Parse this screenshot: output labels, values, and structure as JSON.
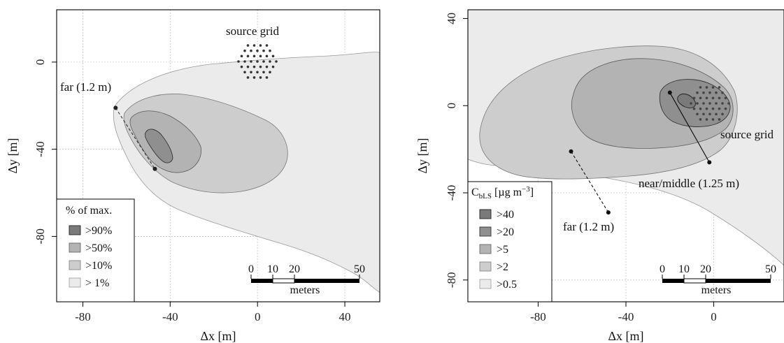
{
  "chart_data": [
    {
      "type": "contour",
      "xlabel": "Δx [m]",
      "ylabel": "Δy [m]",
      "xlim": [
        -92,
        56
      ],
      "ylim": [
        -110,
        24
      ],
      "xticks": [
        -80,
        -40,
        0,
        40
      ],
      "yticks": [
        0,
        -40,
        -80
      ],
      "xtick_labels": [
        "-80",
        "-40",
        "0",
        "40"
      ],
      "ytick_labels": [
        "0",
        "-40",
        "-80"
      ],
      "grid": true,
      "legend_title": "% of max.",
      "legend_position": "bottom-left",
      "legend": [
        ">90%",
        ">50%",
        ">10%",
        "> 1%"
      ],
      "levels_pct": [
        90,
        50,
        10,
        1
      ],
      "annotations": [
        {
          "text": "source grid"
        },
        {
          "text": "far (1.2 m)"
        }
      ],
      "far_line": {
        "from": [
          -65,
          -21
        ],
        "to": [
          -47,
          -49
        ]
      },
      "scale_bar": {
        "tick_labels": [
          "0",
          "10",
          "20",
          "50"
        ],
        "label": "meters"
      }
    },
    {
      "type": "contour",
      "xlabel": "Δx [m]",
      "ylabel": "Δy [m]",
      "xlim": [
        -112,
        32
      ],
      "ylim": [
        -90,
        44
      ],
      "xticks": [
        -80,
        -40,
        0
      ],
      "yticks": [
        40,
        0,
        -40,
        -80
      ],
      "xtick_labels": [
        "-80",
        "-40",
        "0"
      ],
      "ytick_labels": [
        "40",
        "0",
        "-40",
        "-80"
      ],
      "grid": true,
      "legend_title_main": "C",
      "legend_title_sub": "bLS",
      "legend_title_unit": " [µg m",
      "legend_title_exp": "−3",
      "legend_title_end": "]",
      "legend_position": "bottom-left",
      "legend": [
        ">40",
        ">20",
        ">5",
        ">2",
        ">0.5"
      ],
      "levels": [
        40,
        20,
        5,
        2,
        0.5
      ],
      "annotations": [
        {
          "text": "source grid"
        },
        {
          "text": "near/middle (1.25 m)"
        },
        {
          "text": "far (1.2 m)"
        }
      ],
      "near_line": {
        "from": [
          -20,
          6
        ],
        "to": [
          -2,
          -26
        ]
      },
      "far_line": {
        "from": [
          -65,
          -21
        ],
        "to": [
          -48,
          -49
        ]
      },
      "scale_bar": {
        "tick_labels": [
          "0",
          "10",
          "20",
          "50"
        ],
        "label": "meters"
      }
    }
  ]
}
